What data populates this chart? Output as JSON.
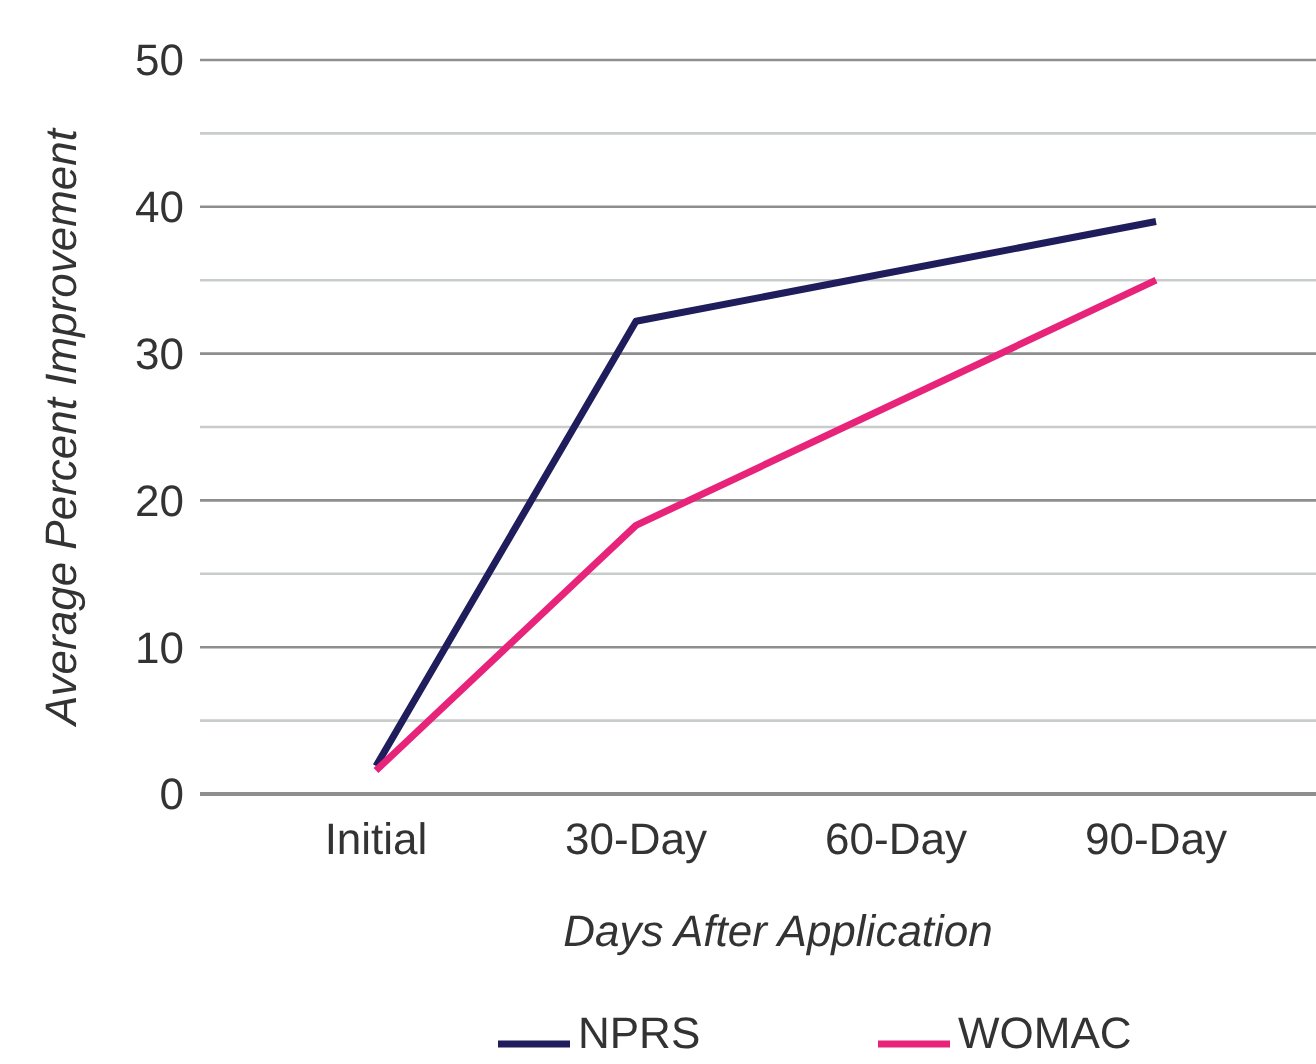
{
  "chart_data": {
    "type": "line",
    "xlabel": "Days After Application",
    "ylabel": "Average Percent Improvement",
    "categories": [
      "Initial",
      "30-Day",
      "60-Day",
      "90-Day"
    ],
    "series": [
      {
        "name": "NPRS",
        "color": "#1f1d5c",
        "values": [
          1.9,
          32.2,
          null,
          39
        ]
      },
      {
        "name": "WOMAC",
        "color": "#e8237a",
        "values": [
          1.6,
          18.3,
          null,
          35
        ]
      }
    ],
    "ylim": [
      0,
      50
    ],
    "yticks": [
      0,
      {
        "value": 5,
        "label": null
      },
      10,
      {
        "value": 15,
        "label": null
      },
      20,
      {
        "value": 25,
        "label": null
      },
      30,
      {
        "value": 35,
        "label": null
      },
      40,
      {
        "value": 45,
        "label": null
      },
      50
    ],
    "grid": true,
    "legend": "bottom",
    "marker": "none",
    "line_style": "solid"
  }
}
